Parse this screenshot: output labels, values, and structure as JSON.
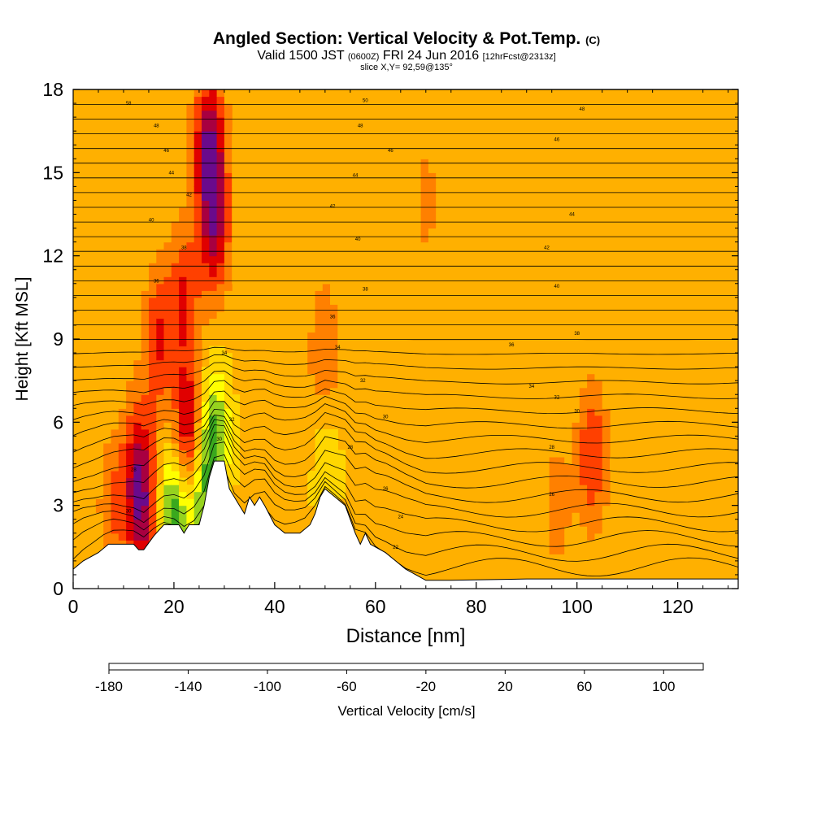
{
  "title": {
    "main": "Angled Section: Vertical Velocity & Pot.Temp.",
    "units_tag": "(C)",
    "valid_prefix": "Valid 1500 JST",
    "valid_zulu": "(0600Z)",
    "valid_date": "FRI 24 Jun 2016",
    "forecast_tag": "[12hrFcst@2313z]",
    "slice": "slice X,Y= 92,59@135°"
  },
  "chart_data": {
    "type": "heatmap",
    "title": "Angled Section: Vertical Velocity & Pot.Temp.",
    "xlabel": "Distance [nm]",
    "ylabel": "Height [Kft MSL]",
    "xlim": [
      0,
      132
    ],
    "ylim": [
      0,
      18
    ],
    "x_ticks": [
      0,
      20,
      40,
      60,
      80,
      100,
      120
    ],
    "y_ticks": [
      0,
      3,
      6,
      9,
      12,
      15,
      18
    ],
    "colorbar": {
      "label": "Vertical Velocity [cm/s]",
      "levels": [
        -180,
        -160,
        -140,
        -120,
        -100,
        -80,
        -60,
        -40,
        -20,
        0,
        20,
        40,
        60,
        80,
        100,
        120
      ],
      "tick_labels": [
        "-180",
        "-140",
        "-100",
        "-60",
        "-20",
        "20",
        "60",
        "100"
      ],
      "tick_values": [
        -180,
        -140,
        -100,
        -60,
        -20,
        20,
        60,
        100
      ],
      "colors": [
        "#0000ee",
        "#0066ff",
        "#00c8ff",
        "#00e0c0",
        "#22b845",
        "#3aa81e",
        "#96d21e",
        "#ffff00",
        "#ffd700",
        "#ffb000",
        "#ff8000",
        "#ff4000",
        "#e00000",
        "#a80040",
        "#6a0a8c"
      ]
    },
    "terrain": [
      [
        0,
        0.7
      ],
      [
        2,
        1.0
      ],
      [
        5,
        1.3
      ],
      [
        7,
        1.6
      ],
      [
        12,
        1.6
      ],
      [
        13,
        1.4
      ],
      [
        14,
        1.4
      ],
      [
        16,
        1.9
      ],
      [
        18,
        2.3
      ],
      [
        21,
        2.3
      ],
      [
        22,
        2.0
      ],
      [
        23,
        2.3
      ],
      [
        25,
        2.3
      ],
      [
        26,
        3.0
      ],
      [
        27,
        4.0
      ],
      [
        28,
        4.6
      ],
      [
        30,
        4.6
      ],
      [
        31,
        3.6
      ],
      [
        33,
        3.0
      ],
      [
        34,
        2.7
      ],
      [
        35,
        3.3
      ],
      [
        36,
        3.0
      ],
      [
        37,
        3.3
      ],
      [
        38,
        3.0
      ],
      [
        40,
        2.3
      ],
      [
        42,
        2.0
      ],
      [
        45,
        2.0
      ],
      [
        47,
        2.3
      ],
      [
        48,
        2.7
      ],
      [
        49,
        3.3
      ],
      [
        50,
        3.6
      ],
      [
        52,
        3.3
      ],
      [
        54,
        3.0
      ],
      [
        56,
        2.0
      ],
      [
        57,
        1.6
      ],
      [
        58,
        2.0
      ],
      [
        59,
        1.6
      ],
      [
        62,
        1.3
      ],
      [
        64,
        1.0
      ],
      [
        66,
        0.7
      ],
      [
        68,
        0.5
      ],
      [
        70,
        0.3
      ],
      [
        75,
        0.3
      ],
      [
        90,
        0.35
      ],
      [
        110,
        0.35
      ],
      [
        132,
        0.35
      ]
    ],
    "series": [
      {
        "x": 8,
        "y": 3.0,
        "value": 40
      },
      {
        "x": 13,
        "y": 4.3,
        "value": 80
      },
      {
        "x": 14,
        "y": 2.0,
        "value": 60
      },
      {
        "x": 17,
        "y": 9.0,
        "value": 60
      },
      {
        "x": 22,
        "y": 10.5,
        "value": 60
      },
      {
        "x": 23,
        "y": 5.5,
        "value": 100
      },
      {
        "x": 27,
        "y": 16.0,
        "value": 100
      },
      {
        "x": 28,
        "y": 13.0,
        "value": 80
      },
      {
        "x": 20,
        "y": 2.5,
        "value": -80
      },
      {
        "x": 25,
        "y": 3.7,
        "value": -60
      },
      {
        "x": 28,
        "y": 5.5,
        "value": -60
      },
      {
        "x": 50,
        "y": 8.5,
        "value": 40
      },
      {
        "x": 50,
        "y": 4.5,
        "value": -20
      },
      {
        "x": 103,
        "y": 4.8,
        "value": 60
      },
      {
        "x": 87,
        "y": 4.5,
        "value": 20
      },
      {
        "x": 96,
        "y": 3.0,
        "value": 30
      },
      {
        "x": 110,
        "y": 6.5,
        "value": 0
      },
      {
        "x": 100,
        "y": 16.0,
        "value": 5
      },
      {
        "x": 120,
        "y": 10.0,
        "value": 5
      },
      {
        "x": 70,
        "y": 14.0,
        "value": 25
      },
      {
        "x": 45,
        "y": 6.0,
        "value": 15
      },
      {
        "x": 85,
        "y": 8.0,
        "value": 10
      }
    ],
    "contours": {
      "variable": "Pot.Temp. (C)",
      "labels": [
        {
          "x": 11,
          "y": 17.5,
          "text": "58"
        },
        {
          "x": 16.5,
          "y": 16.7,
          "text": "48"
        },
        {
          "x": 18.5,
          "y": 15.8,
          "text": "46"
        },
        {
          "x": 19.5,
          "y": 15.0,
          "text": "44"
        },
        {
          "x": 23,
          "y": 14.2,
          "text": "42"
        },
        {
          "x": 15.5,
          "y": 13.3,
          "text": "40"
        },
        {
          "x": 22,
          "y": 12.3,
          "text": "38"
        },
        {
          "x": 16.5,
          "y": 11.1,
          "text": "36"
        },
        {
          "x": 12,
          "y": 4.3,
          "text": "28"
        },
        {
          "x": 11,
          "y": 2.8,
          "text": "30"
        },
        {
          "x": 30,
          "y": 8.5,
          "text": "34"
        },
        {
          "x": 31.5,
          "y": 6.1,
          "text": "32"
        },
        {
          "x": 29,
          "y": 5.4,
          "text": "30"
        },
        {
          "x": 58,
          "y": 17.6,
          "text": "50"
        },
        {
          "x": 57,
          "y": 16.7,
          "text": "48"
        },
        {
          "x": 63,
          "y": 15.8,
          "text": "46"
        },
        {
          "x": 56,
          "y": 14.9,
          "text": "44"
        },
        {
          "x": 51.5,
          "y": 13.8,
          "text": "42"
        },
        {
          "x": 56.5,
          "y": 12.6,
          "text": "40"
        },
        {
          "x": 58,
          "y": 10.8,
          "text": "38"
        },
        {
          "x": 51.5,
          "y": 9.8,
          "text": "36"
        },
        {
          "x": 52.5,
          "y": 8.7,
          "text": "34"
        },
        {
          "x": 57.5,
          "y": 7.5,
          "text": "32"
        },
        {
          "x": 62,
          "y": 6.2,
          "text": "30"
        },
        {
          "x": 55,
          "y": 5.1,
          "text": "28"
        },
        {
          "x": 62,
          "y": 3.6,
          "text": "26"
        },
        {
          "x": 65,
          "y": 2.6,
          "text": "24"
        },
        {
          "x": 64,
          "y": 1.5,
          "text": "22"
        },
        {
          "x": 101,
          "y": 17.3,
          "text": "48"
        },
        {
          "x": 96,
          "y": 16.2,
          "text": "46"
        },
        {
          "x": 99,
          "y": 13.5,
          "text": "44"
        },
        {
          "x": 94,
          "y": 12.3,
          "text": "42"
        },
        {
          "x": 96,
          "y": 10.9,
          "text": "40"
        },
        {
          "x": 100,
          "y": 9.2,
          "text": "38"
        },
        {
          "x": 87,
          "y": 8.8,
          "text": "36"
        },
        {
          "x": 91,
          "y": 7.3,
          "text": "34"
        },
        {
          "x": 96,
          "y": 6.9,
          "text": "32"
        },
        {
          "x": 100,
          "y": 6.4,
          "text": "30"
        },
        {
          "x": 95,
          "y": 5.1,
          "text": "28"
        },
        {
          "x": 95,
          "y": 3.4,
          "text": "26"
        }
      ]
    }
  }
}
